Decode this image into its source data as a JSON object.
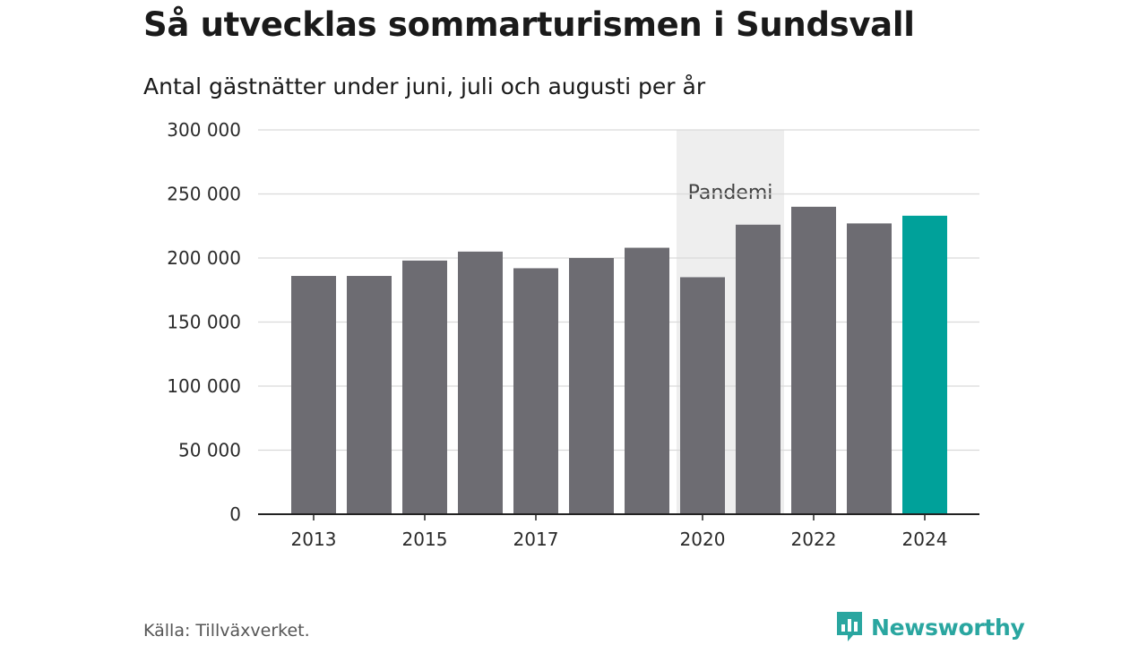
{
  "chart_data": {
    "type": "bar",
    "title": "Så utvecklas sommarturismen i Sundsvall",
    "subtitle": "Antal gästnätter under juni, juli och augusti per år",
    "categories": [
      "2013",
      "2014",
      "2015",
      "2016",
      "2017",
      "2018",
      "2019",
      "2020",
      "2021",
      "2022",
      "2023",
      "2024"
    ],
    "x_tick_labels": [
      "2013",
      "",
      "2015",
      "",
      "2017",
      "",
      "",
      "2020",
      "",
      "2022",
      "",
      "2024"
    ],
    "values": [
      186000,
      186000,
      198000,
      205000,
      192000,
      200000,
      208000,
      185000,
      226000,
      240000,
      227000,
      233000
    ],
    "ylim": [
      0,
      300000
    ],
    "yticks": [
      0,
      50000,
      100000,
      150000,
      200000,
      250000,
      300000
    ],
    "ytick_labels": [
      "0",
      "50 000",
      "100 000",
      "150 000",
      "200 000",
      "250 000",
      "300 000"
    ],
    "grid": true,
    "bar_color": "#6d6c72",
    "highlight": {
      "category": "2024",
      "color": "#00a19a"
    },
    "annotation_band": {
      "from": "2020",
      "to": "2021",
      "label": "Pandemi",
      "color": "#eeeeee"
    }
  },
  "source": "Källa: Tillväxverket.",
  "logo": {
    "text": "Newsworthy",
    "icon": "newsworthy-logo-icon",
    "color": "#2aa6a0"
  }
}
